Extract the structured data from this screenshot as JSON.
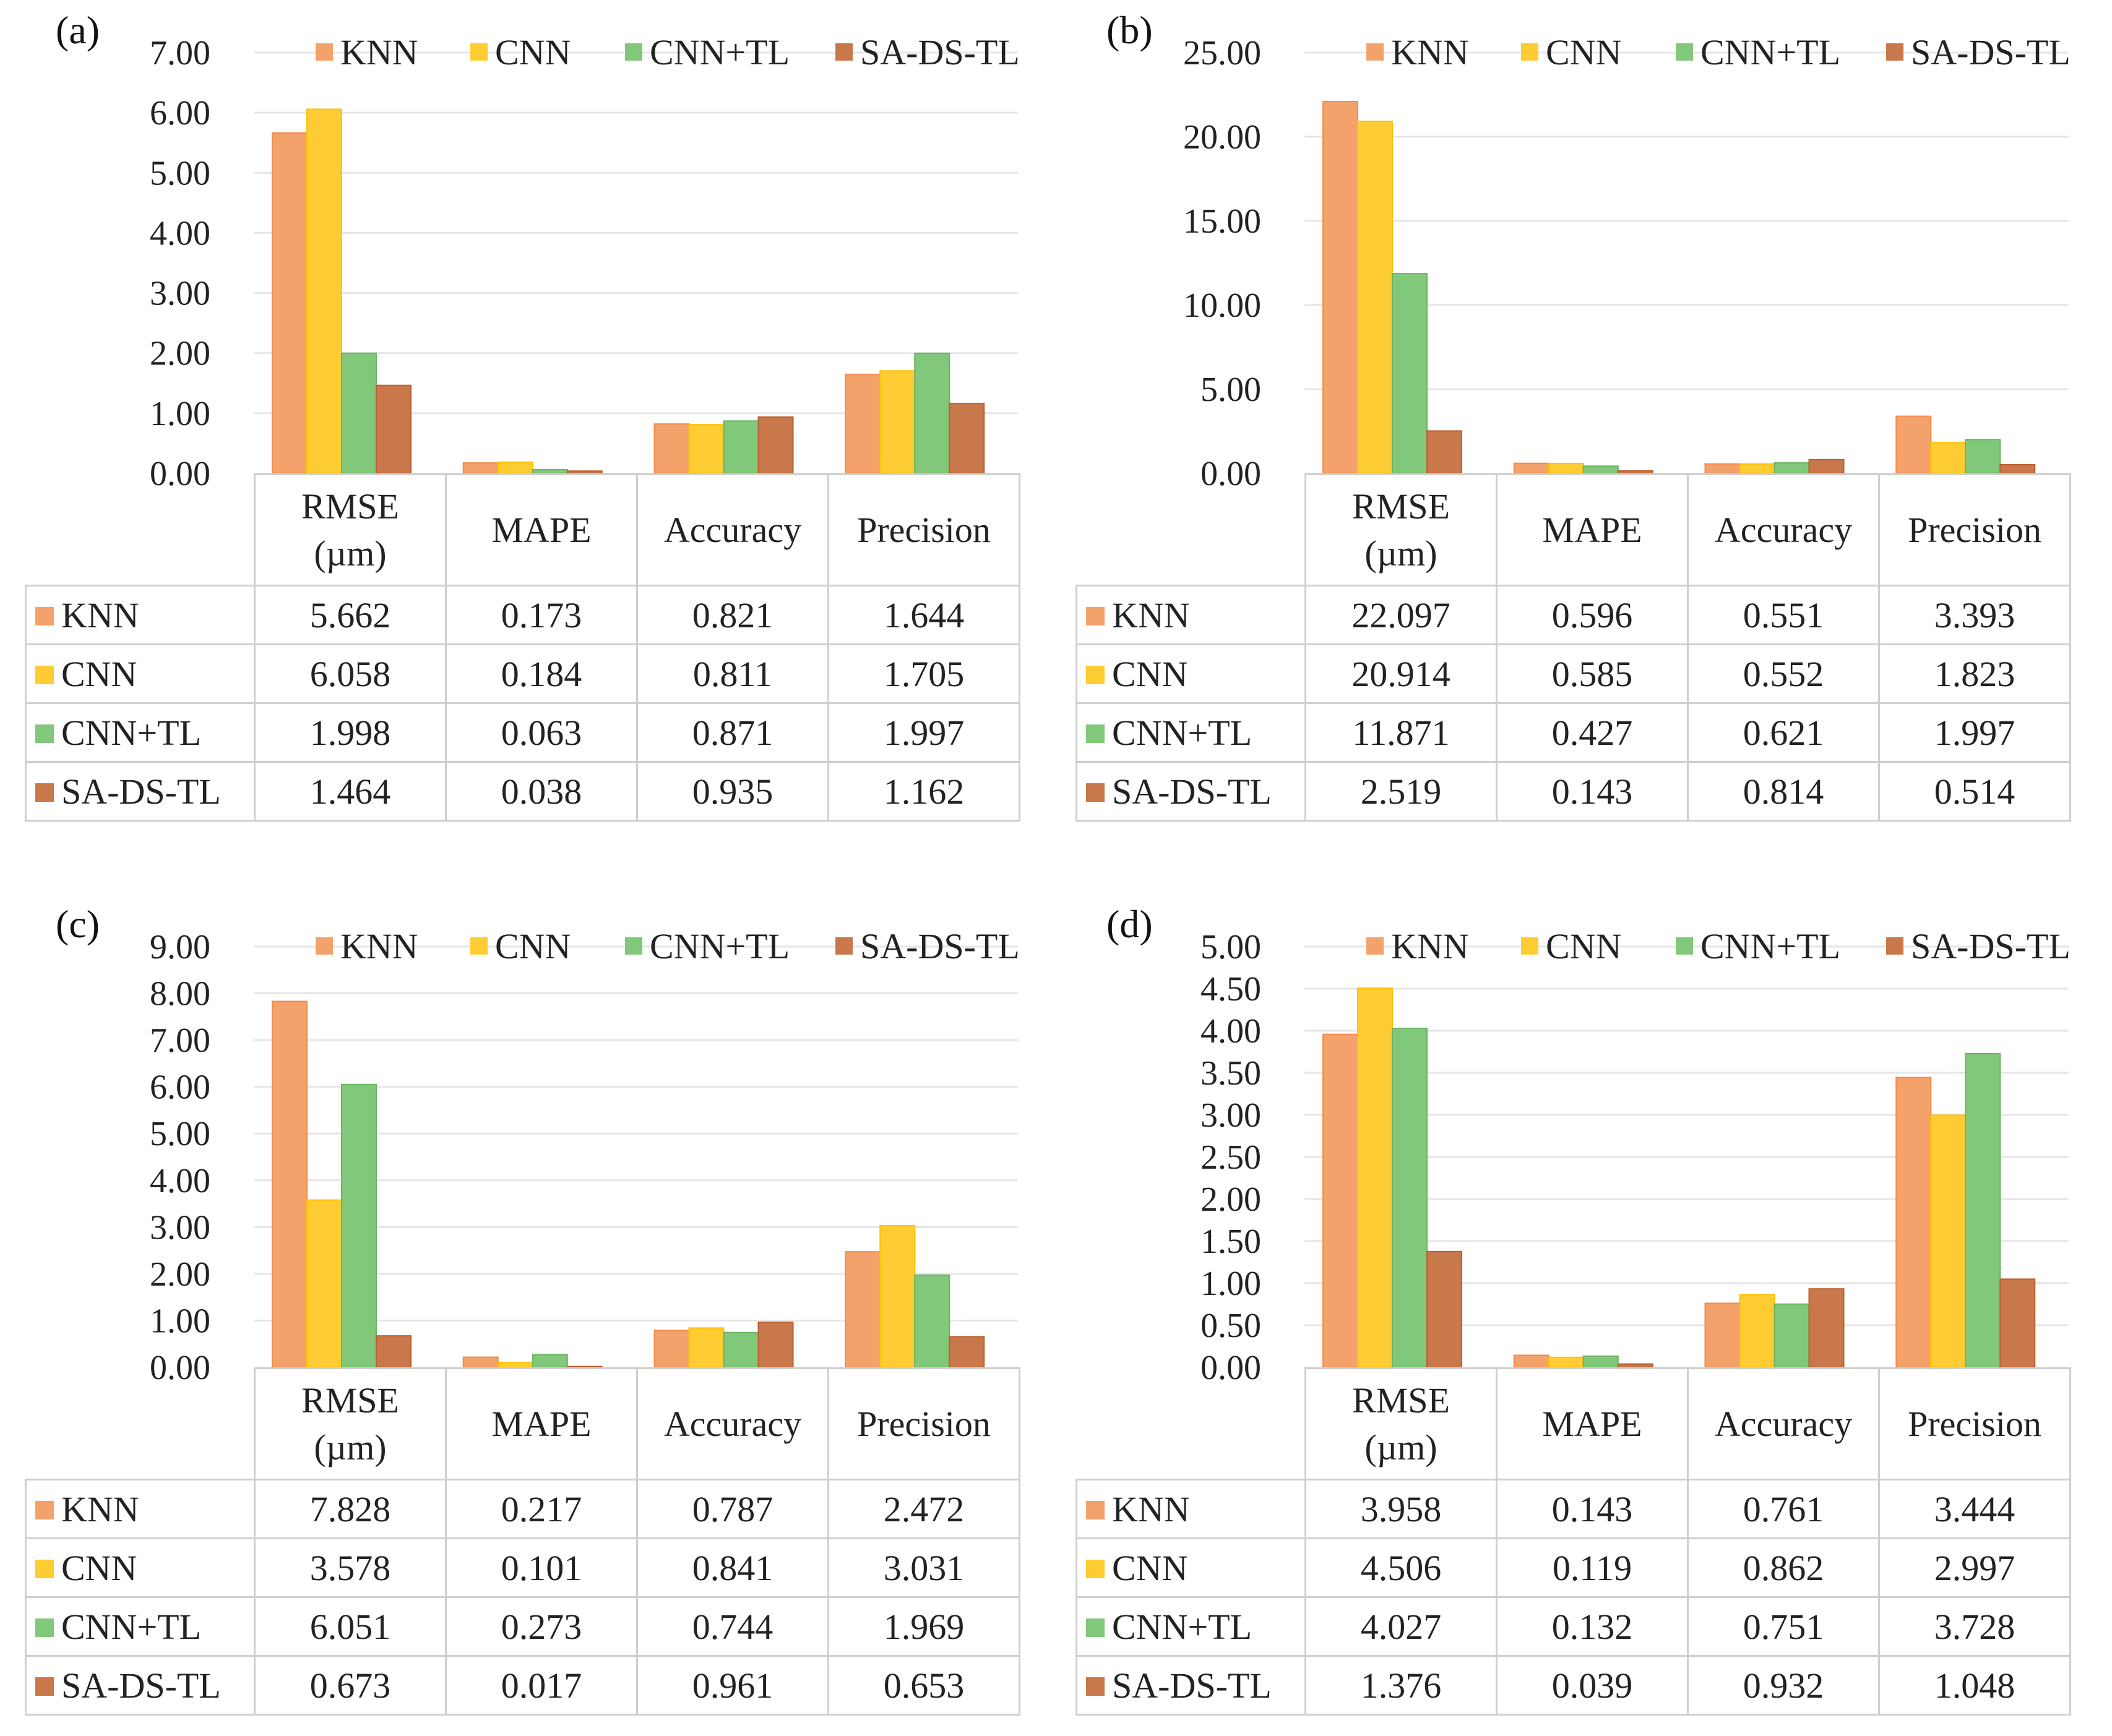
{
  "series_names": [
    "KNN",
    "CNN",
    "CNN+TL",
    "SA-DS-TL"
  ],
  "series_colors": [
    "#f4a26b",
    "#ffcc33",
    "#82c87a",
    "#c8784a"
  ],
  "series_edge_colors": [
    "#f28a4a",
    "#ffc000",
    "#6bb462",
    "#b8602e"
  ],
  "chart_data": [
    {
      "panel": "(a)",
      "type": "bar",
      "categories": [
        "RMSE (µm)",
        "MAPE",
        "Accuracy",
        "Precision"
      ],
      "category_lines": [
        [
          "RMSE",
          "(µm)"
        ],
        [
          "MAPE"
        ],
        [
          "Accuracy"
        ],
        [
          "Precision"
        ]
      ],
      "ylim": [
        0,
        7
      ],
      "yticks": [
        "0.00",
        "1.00",
        "2.00",
        "3.00",
        "4.00",
        "5.00",
        "6.00",
        "7.00"
      ],
      "series": [
        {
          "name": "KNN",
          "values": [
            5.662,
            0.173,
            0.821,
            1.644
          ]
        },
        {
          "name": "CNN",
          "values": [
            6.058,
            0.184,
            0.811,
            1.705
          ]
        },
        {
          "name": "CNN+TL",
          "values": [
            1.998,
            0.063,
            0.871,
            1.997
          ]
        },
        {
          "name": "SA-DS-TL",
          "values": [
            1.464,
            0.038,
            0.935,
            1.162
          ]
        }
      ],
      "table": [
        [
          "5.662",
          "0.173",
          "0.821",
          "1.644"
        ],
        [
          "6.058",
          "0.184",
          "0.811",
          "1.705"
        ],
        [
          "1.998",
          "0.063",
          "0.871",
          "1.997"
        ],
        [
          "1.464",
          "0.038",
          "0.935",
          "1.162"
        ]
      ]
    },
    {
      "panel": "(b)",
      "type": "bar",
      "categories": [
        "RMSE (µm)",
        "MAPE",
        "Accuracy",
        "Precision"
      ],
      "category_lines": [
        [
          "RMSE",
          "(µm)"
        ],
        [
          "MAPE"
        ],
        [
          "Accuracy"
        ],
        [
          "Precision"
        ]
      ],
      "ylim": [
        0,
        25
      ],
      "yticks": [
        "0.00",
        "5.00",
        "10.00",
        "15.00",
        "20.00",
        "25.00"
      ],
      "series": [
        {
          "name": "KNN",
          "values": [
            22.097,
            0.596,
            0.551,
            3.393
          ]
        },
        {
          "name": "CNN",
          "values": [
            20.914,
            0.585,
            0.552,
            1.823
          ]
        },
        {
          "name": "CNN+TL",
          "values": [
            11.871,
            0.427,
            0.621,
            1.997
          ]
        },
        {
          "name": "SA-DS-TL",
          "values": [
            2.519,
            0.143,
            0.814,
            0.514
          ]
        }
      ],
      "table": [
        [
          "22.097",
          "0.596",
          "0.551",
          "3.393"
        ],
        [
          "20.914",
          "0.585",
          "0.552",
          "1.823"
        ],
        [
          "11.871",
          "0.427",
          "0.621",
          "1.997"
        ],
        [
          "2.519",
          "0.143",
          "0.814",
          "0.514"
        ]
      ]
    },
    {
      "panel": "(c)",
      "type": "bar",
      "categories": [
        "RMSE (µm)",
        "MAPE",
        "Accuracy",
        "Precision"
      ],
      "category_lines": [
        [
          "RMSE",
          "(µm)"
        ],
        [
          "MAPE"
        ],
        [
          "Accuracy"
        ],
        [
          "Precision"
        ]
      ],
      "ylim": [
        0,
        9
      ],
      "yticks": [
        "0.00",
        "1.00",
        "2.00",
        "3.00",
        "4.00",
        "5.00",
        "6.00",
        "7.00",
        "8.00",
        "9.00"
      ],
      "series": [
        {
          "name": "KNN",
          "values": [
            7.828,
            0.217,
            0.787,
            2.472
          ]
        },
        {
          "name": "CNN",
          "values": [
            3.578,
            0.101,
            0.841,
            3.031
          ]
        },
        {
          "name": "CNN+TL",
          "values": [
            6.051,
            0.273,
            0.744,
            1.969
          ]
        },
        {
          "name": "SA-DS-TL",
          "values": [
            0.673,
            0.017,
            0.961,
            0.653
          ]
        }
      ],
      "table": [
        [
          "7.828",
          "0.217",
          "0.787",
          "2.472"
        ],
        [
          "3.578",
          "0.101",
          "0.841",
          "3.031"
        ],
        [
          "6.051",
          "0.273",
          "0.744",
          "1.969"
        ],
        [
          "0.673",
          "0.017",
          "0.961",
          "0.653"
        ]
      ]
    },
    {
      "panel": "(d)",
      "type": "bar",
      "categories": [
        "RMSE (µm)",
        "MAPE",
        "Accuracy",
        "Precision"
      ],
      "category_lines": [
        [
          "RMSE",
          "(µm)"
        ],
        [
          "MAPE"
        ],
        [
          "Accuracy"
        ],
        [
          "Precision"
        ]
      ],
      "ylim": [
        0,
        5
      ],
      "yticks": [
        "0.00",
        "0.50",
        "1.00",
        "1.50",
        "2.00",
        "2.50",
        "3.00",
        "3.50",
        "4.00",
        "4.50",
        "5.00"
      ],
      "series": [
        {
          "name": "KNN",
          "values": [
            3.958,
            0.143,
            0.761,
            3.444
          ]
        },
        {
          "name": "CNN",
          "values": [
            4.506,
            0.119,
            0.862,
            2.997
          ]
        },
        {
          "name": "CNN+TL",
          "values": [
            4.027,
            0.132,
            0.751,
            3.728
          ]
        },
        {
          "name": "SA-DS-TL",
          "values": [
            1.376,
            0.039,
            0.932,
            1.048
          ]
        }
      ],
      "table": [
        [
          "3.958",
          "0.143",
          "0.761",
          "3.444"
        ],
        [
          "4.506",
          "0.119",
          "0.862",
          "2.997"
        ],
        [
          "4.027",
          "0.132",
          "0.751",
          "3.728"
        ],
        [
          "1.376",
          "0.039",
          "0.932",
          "1.048"
        ]
      ]
    }
  ]
}
